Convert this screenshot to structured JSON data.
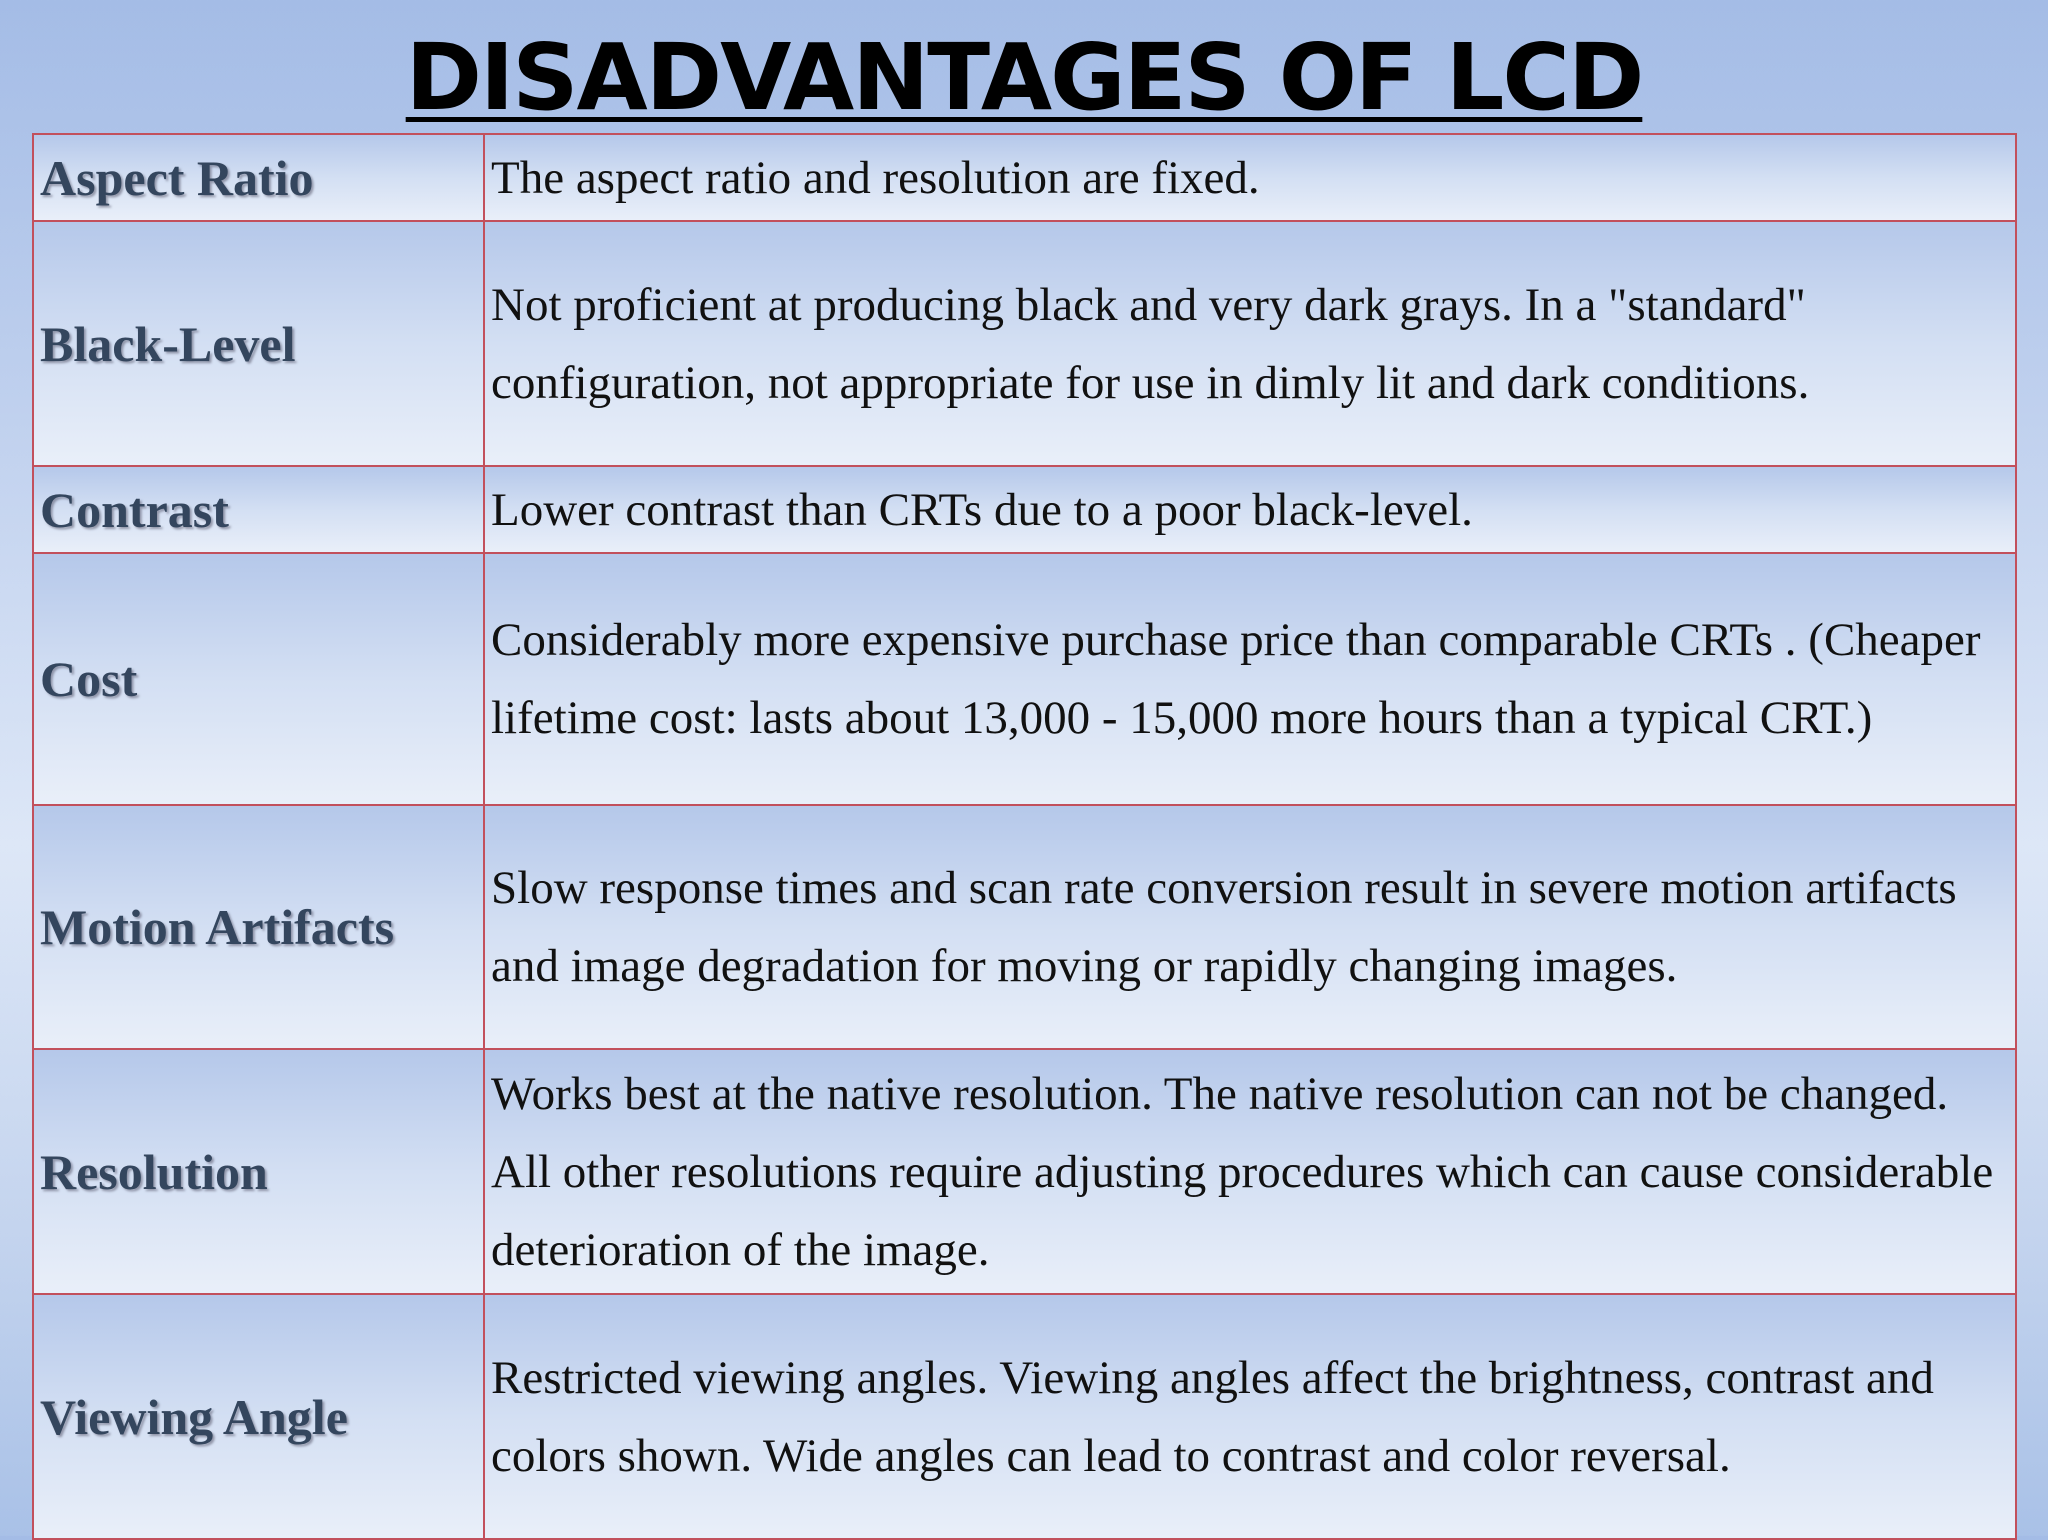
{
  "slide": {
    "title": "DISADVANTAGES OF LCD"
  },
  "table": {
    "rows": [
      {
        "label": "Aspect Ratio",
        "description": "The aspect ratio and resolution are fixed."
      },
      {
        "label": "Black-Level",
        "description": "Not proficient at producing black and very dark grays. In a \"standard\" configuration, not appropriate for use in dimly lit and dark conditions."
      },
      {
        "label": "Contrast",
        "description": "Lower contrast than CRTs due to a poor black-level."
      },
      {
        "label": "Cost",
        "description": "Considerably more expensive purchase price than comparable CRTs . (Cheaper lifetime cost: lasts about 13,000 - 15,000 more hours than a typical CRT.)"
      },
      {
        "label": "Motion Artifacts",
        "description": "Slow response times and scan rate conversion result in severe motion artifacts and image degradation for moving or rapidly changing images."
      },
      {
        "label": "Resolution",
        "description": "Works best at the native resolution. The native resolution can not be changed. All other resolutions require adjusting procedures which can cause considerable deterioration of the image."
      },
      {
        "label": "Viewing Angle",
        "description": "Restricted viewing angles. Viewing angles affect the brightness, contrast and colors shown. Wide angles can lead to contrast and color reversal."
      }
    ]
  }
}
